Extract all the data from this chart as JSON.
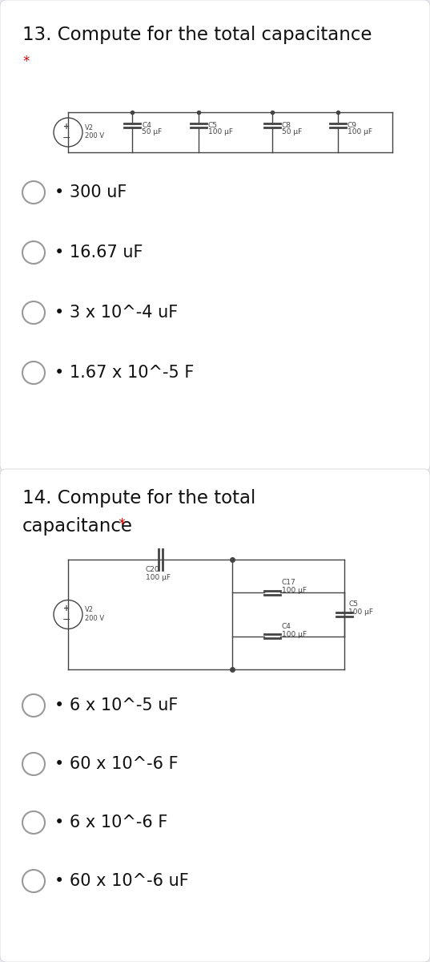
{
  "q13_title": "13. Compute for the total capacitance",
  "q13_star": "*",
  "q13_options": [
    "• 300 uF",
    "• 16.67 uF",
    "• 3 x 10^-4 uF",
    "• 1.67 x 10^-5 F"
  ],
  "q13_caps": [
    {
      "label": "C4",
      "value": "50 μF"
    },
    {
      "label": "C5",
      "value": "100 μF"
    },
    {
      "label": "C8",
      "value": "50 μF"
    },
    {
      "label": "C9",
      "value": "100 μF"
    }
  ],
  "q14_title_line1": "14. Compute for the total",
  "q14_title_line2": "capacitance",
  "q14_star": "*",
  "q14_options": [
    "• 6 x 10^-5 uF",
    "• 60 x 10^-6 F",
    "• 6 x 10^-6 F",
    "• 60 x 10^-6 uF"
  ],
  "bg_color": "#e8e8f0",
  "card_color": "#ffffff",
  "text_color": "#111111",
  "star_color": "#cc0000",
  "line_color": "#444444",
  "option_fontsize": 15,
  "title_fontsize": 16.5,
  "circ_fontsize": 6.5
}
